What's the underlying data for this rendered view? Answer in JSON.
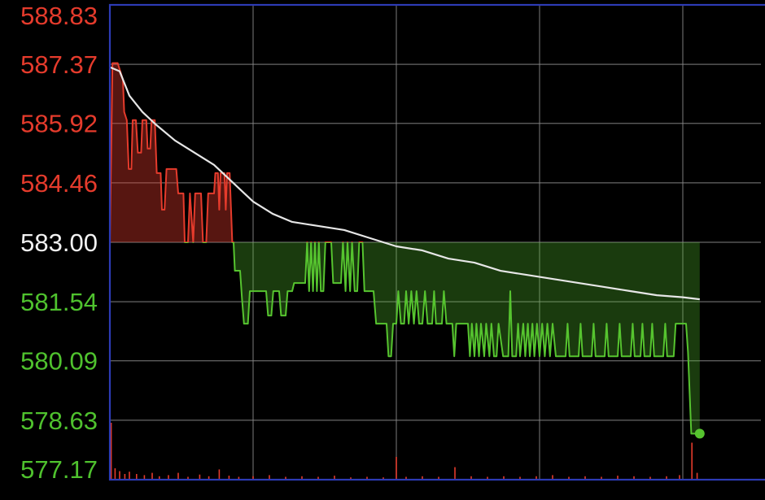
{
  "chart_data": {
    "type": "line",
    "title": "",
    "xlabel": "",
    "ylabel": "",
    "reference_price": 583.0,
    "ylim": [
      577.17,
      588.83
    ],
    "y_tick_labels": [
      {
        "value": 588.83,
        "label": "588.83",
        "color": "#e53b2c"
      },
      {
        "value": 587.37,
        "label": "587.37",
        "color": "#e53b2c"
      },
      {
        "value": 585.92,
        "label": "585.92",
        "color": "#e53b2c"
      },
      {
        "value": 584.46,
        "label": "584.46",
        "color": "#e53b2c"
      },
      {
        "value": 583.0,
        "label": "583.00",
        "color": "#f2f2f2"
      },
      {
        "value": 581.54,
        "label": "581.54",
        "color": "#4fc22e"
      },
      {
        "value": 580.09,
        "label": "580.09",
        "color": "#4fc22e"
      },
      {
        "value": 578.63,
        "label": "578.63",
        "color": "#4fc22e"
      },
      {
        "value": 577.17,
        "label": "577.17",
        "color": "#4fc22e"
      }
    ],
    "grid": true,
    "x_range": [
      0,
      100
    ],
    "x_gridlines": [
      0,
      22,
      44,
      66,
      88
    ],
    "colors": {
      "up": "#e53b2c",
      "down": "#56c42f",
      "average": "#e6e6e6",
      "grid": "#8a8a8a",
      "frame": "#2d3bb5",
      "background": "#000000"
    },
    "series": [
      {
        "role": "price",
        "points": [
          [
            0,
            583.0
          ],
          [
            0.4,
            587.4
          ],
          [
            1.2,
            587.4
          ],
          [
            2.0,
            587.0
          ],
          [
            2.2,
            586.2
          ],
          [
            2.6,
            586.0
          ],
          [
            2.9,
            584.8
          ],
          [
            3.3,
            584.8
          ],
          [
            3.5,
            586.0
          ],
          [
            4.0,
            586.0
          ],
          [
            4.3,
            585.2
          ],
          [
            4.8,
            585.2
          ],
          [
            5.0,
            586.0
          ],
          [
            5.6,
            586.0
          ],
          [
            5.8,
            585.3
          ],
          [
            6.2,
            585.3
          ],
          [
            6.4,
            586.0
          ],
          [
            6.9,
            586.0
          ],
          [
            7.2,
            584.7
          ],
          [
            7.8,
            584.7
          ],
          [
            8.0,
            583.8
          ],
          [
            8.4,
            583.8
          ],
          [
            8.7,
            584.8
          ],
          [
            10.2,
            584.8
          ],
          [
            10.5,
            584.2
          ],
          [
            11.3,
            584.2
          ],
          [
            11.5,
            583.0
          ],
          [
            12.0,
            583.0
          ],
          [
            12.3,
            584.2
          ],
          [
            12.8,
            583.0
          ],
          [
            13.1,
            584.2
          ],
          [
            14.0,
            584.2
          ],
          [
            14.3,
            583.0
          ],
          [
            14.8,
            583.0
          ],
          [
            15.1,
            584.2
          ],
          [
            16.0,
            584.2
          ],
          [
            16.2,
            584.7
          ],
          [
            16.6,
            584.7
          ],
          [
            16.8,
            583.8
          ],
          [
            17.0,
            584.7
          ],
          [
            17.6,
            584.7
          ],
          [
            17.8,
            583.8
          ],
          [
            18.0,
            584.7
          ],
          [
            18.4,
            584.7
          ],
          [
            18.8,
            583.0
          ],
          [
            19.0,
            583.0
          ],
          [
            19.2,
            582.3
          ],
          [
            20.0,
            582.3
          ],
          [
            20.3,
            581.6
          ],
          [
            20.6,
            581.0
          ],
          [
            21.2,
            581.0
          ],
          [
            21.5,
            581.8
          ],
          [
            24.0,
            581.8
          ],
          [
            24.3,
            581.2
          ],
          [
            24.8,
            581.2
          ],
          [
            25.1,
            581.8
          ],
          [
            26.0,
            581.8
          ],
          [
            26.3,
            581.2
          ],
          [
            27.0,
            581.2
          ],
          [
            27.3,
            581.8
          ],
          [
            28.0,
            581.8
          ],
          [
            28.3,
            582.0
          ],
          [
            30.0,
            582.0
          ],
          [
            30.3,
            583.0
          ],
          [
            30.6,
            581.8
          ],
          [
            30.9,
            583.0
          ],
          [
            31.2,
            581.8
          ],
          [
            31.5,
            583.0
          ],
          [
            31.8,
            581.8
          ],
          [
            32.1,
            583.0
          ],
          [
            32.4,
            581.8
          ],
          [
            32.8,
            581.8
          ],
          [
            33.1,
            583.0
          ],
          [
            34.0,
            583.0
          ],
          [
            34.3,
            582.0
          ],
          [
            35.5,
            582.0
          ],
          [
            35.8,
            583.0
          ],
          [
            36.2,
            581.8
          ],
          [
            36.5,
            583.0
          ],
          [
            36.9,
            581.8
          ],
          [
            37.2,
            583.0
          ],
          [
            37.6,
            581.8
          ],
          [
            38.0,
            581.8
          ],
          [
            38.3,
            583.0
          ],
          [
            38.8,
            583.0
          ],
          [
            39.1,
            581.8
          ],
          [
            40.5,
            581.8
          ],
          [
            40.9,
            581.0
          ],
          [
            42.5,
            581.0
          ],
          [
            42.8,
            580.2
          ],
          [
            43.2,
            580.2
          ],
          [
            43.5,
            581.0
          ],
          [
            44.0,
            581.0
          ],
          [
            44.3,
            581.8
          ],
          [
            44.7,
            581.0
          ],
          [
            45.2,
            581.0
          ],
          [
            45.5,
            581.8
          ],
          [
            45.9,
            581.0
          ],
          [
            46.3,
            581.8
          ],
          [
            46.7,
            581.0
          ],
          [
            47.1,
            581.8
          ],
          [
            47.5,
            581.0
          ],
          [
            48.0,
            581.0
          ],
          [
            48.4,
            581.8
          ],
          [
            48.8,
            581.0
          ],
          [
            49.5,
            581.0
          ],
          [
            49.8,
            581.8
          ],
          [
            50.1,
            581.0
          ],
          [
            51.0,
            581.0
          ],
          [
            51.3,
            581.8
          ],
          [
            51.7,
            581.0
          ],
          [
            52.6,
            581.0
          ],
          [
            52.9,
            580.2
          ],
          [
            53.2,
            581.0
          ],
          [
            55.0,
            581.0
          ],
          [
            55.3,
            580.2
          ],
          [
            55.6,
            581.0
          ],
          [
            56.0,
            580.2
          ],
          [
            56.3,
            581.0
          ],
          [
            56.7,
            580.2
          ],
          [
            57.0,
            581.0
          ],
          [
            57.5,
            580.2
          ],
          [
            57.8,
            581.0
          ],
          [
            58.3,
            580.2
          ],
          [
            58.6,
            581.0
          ],
          [
            59.0,
            580.2
          ],
          [
            59.4,
            580.2
          ],
          [
            59.7,
            581.0
          ],
          [
            60.4,
            580.2
          ],
          [
            61.2,
            580.2
          ],
          [
            61.5,
            581.8
          ],
          [
            61.8,
            580.2
          ],
          [
            62.4,
            580.2
          ],
          [
            62.7,
            581.0
          ],
          [
            63.0,
            580.2
          ],
          [
            63.5,
            581.0
          ],
          [
            63.8,
            580.2
          ],
          [
            64.2,
            581.0
          ],
          [
            64.5,
            580.2
          ],
          [
            64.9,
            581.0
          ],
          [
            65.2,
            580.2
          ],
          [
            65.6,
            581.0
          ],
          [
            66.0,
            580.2
          ],
          [
            66.4,
            581.0
          ],
          [
            66.8,
            580.2
          ],
          [
            67.2,
            581.0
          ],
          [
            67.6,
            580.2
          ],
          [
            68.0,
            581.0
          ],
          [
            68.5,
            580.2
          ],
          [
            70.0,
            580.2
          ],
          [
            70.3,
            581.0
          ],
          [
            70.6,
            580.2
          ],
          [
            72.0,
            580.2
          ],
          [
            72.3,
            581.0
          ],
          [
            72.6,
            580.2
          ],
          [
            74.0,
            580.2
          ],
          [
            74.3,
            581.0
          ],
          [
            74.6,
            580.2
          ],
          [
            76.0,
            580.2
          ],
          [
            76.3,
            581.0
          ],
          [
            76.6,
            580.2
          ],
          [
            78.0,
            580.2
          ],
          [
            78.3,
            581.0
          ],
          [
            78.6,
            580.2
          ],
          [
            80.0,
            580.2
          ],
          [
            80.3,
            581.0
          ],
          [
            80.6,
            580.2
          ],
          [
            81.5,
            580.2
          ],
          [
            81.8,
            581.0
          ],
          [
            82.1,
            580.2
          ],
          [
            83.0,
            580.2
          ],
          [
            83.3,
            581.0
          ],
          [
            83.6,
            580.2
          ],
          [
            85.0,
            580.2
          ],
          [
            85.3,
            581.0
          ],
          [
            85.6,
            580.2
          ],
          [
            86.6,
            580.2
          ],
          [
            86.9,
            581.0
          ],
          [
            88.5,
            581.0
          ],
          [
            88.8,
            580.3
          ],
          [
            89.3,
            578.3
          ],
          [
            90.6,
            578.3
          ]
        ]
      },
      {
        "role": "average",
        "points": [
          [
            0,
            587.3
          ],
          [
            1.5,
            587.2
          ],
          [
            3,
            586.6
          ],
          [
            5,
            586.2
          ],
          [
            7,
            585.9
          ],
          [
            10,
            585.5
          ],
          [
            13,
            585.2
          ],
          [
            16,
            584.9
          ],
          [
            18,
            584.6
          ],
          [
            20,
            584.3
          ],
          [
            22,
            584.0
          ],
          [
            25,
            583.7
          ],
          [
            28,
            583.5
          ],
          [
            32,
            583.4
          ],
          [
            36,
            583.3
          ],
          [
            40,
            583.1
          ],
          [
            44,
            582.9
          ],
          [
            48,
            582.8
          ],
          [
            52,
            582.6
          ],
          [
            56,
            582.5
          ],
          [
            60,
            582.3
          ],
          [
            64,
            582.2
          ],
          [
            68,
            582.1
          ],
          [
            72,
            582.0
          ],
          [
            76,
            581.9
          ],
          [
            80,
            581.8
          ],
          [
            84,
            581.7
          ],
          [
            88,
            581.65
          ],
          [
            90.6,
            581.6
          ]
        ]
      }
    ],
    "last_point": [
      90.6,
      578.3
    ],
    "volume": {
      "color": "#e53b2c",
      "scale_max": 10,
      "bars": [
        [
          0.2,
          10
        ],
        [
          0.8,
          2
        ],
        [
          1.5,
          1.5
        ],
        [
          2.3,
          1
        ],
        [
          3.0,
          1.4
        ],
        [
          4.1,
          1
        ],
        [
          5.3,
          0.8
        ],
        [
          6.5,
          1.2
        ],
        [
          7.6,
          0.6
        ],
        [
          9.0,
          0.8
        ],
        [
          10.5,
          1.2
        ],
        [
          12.0,
          0.5
        ],
        [
          13.8,
          0.9
        ],
        [
          15.2,
          0.6
        ],
        [
          16.8,
          1.8
        ],
        [
          18.3,
          0.7
        ],
        [
          19.8,
          0.5
        ],
        [
          22.0,
          0.6
        ],
        [
          24.5,
          0.8
        ],
        [
          27.0,
          0.5
        ],
        [
          29.5,
          0.6
        ],
        [
          32.0,
          0.5
        ],
        [
          34.5,
          0.7
        ],
        [
          37.0,
          0.4
        ],
        [
          39.5,
          0.5
        ],
        [
          42.0,
          0.4
        ],
        [
          44.0,
          4
        ],
        [
          45.5,
          0.5
        ],
        [
          48.0,
          0.6
        ],
        [
          50.5,
          0.5
        ],
        [
          53.0,
          2.2
        ],
        [
          55.5,
          0.6
        ],
        [
          58.0,
          0.5
        ],
        [
          60.5,
          0.6
        ],
        [
          63.0,
          0.5
        ],
        [
          65.5,
          0.6
        ],
        [
          68.0,
          0.8
        ],
        [
          70.5,
          0.5
        ],
        [
          73.0,
          0.6
        ],
        [
          75.5,
          0.5
        ],
        [
          78.0,
          0.7
        ],
        [
          80.5,
          0.6
        ],
        [
          83.0,
          0.5
        ],
        [
          85.5,
          0.6
        ],
        [
          87.5,
          0.8
        ],
        [
          89.4,
          6.5
        ],
        [
          90.2,
          1.2
        ]
      ]
    }
  }
}
